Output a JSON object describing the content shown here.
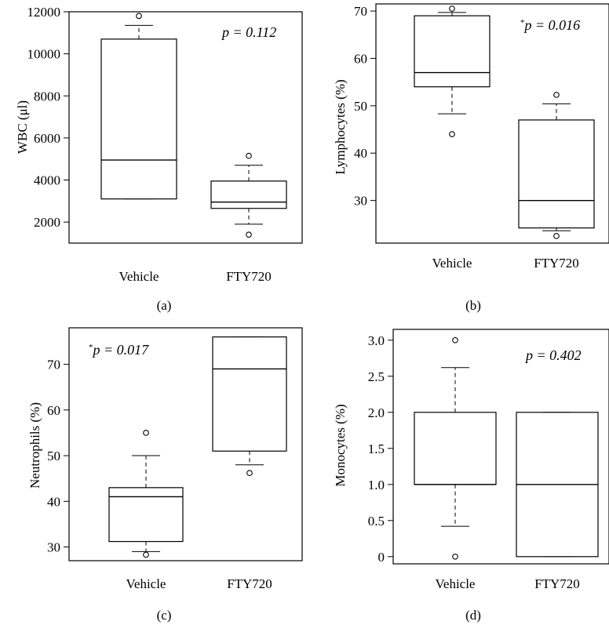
{
  "chart_data": [
    {
      "type": "box",
      "panel_label": "(a)",
      "ylabel": "WBC (μl)",
      "annotation": {
        "prefix": "",
        "text": "p = 0.112"
      },
      "ylim": [
        1000,
        12000
      ],
      "yticks": [
        2000,
        4000,
        6000,
        8000,
        10000,
        12000
      ],
      "yticklabels": [
        "2000",
        "4000",
        "6000",
        "8000",
        "10000",
        "12000"
      ],
      "categories": [
        "Vehicle",
        "FTY720"
      ],
      "boxes": [
        {
          "name": "Vehicle",
          "whisker_low": 3100,
          "q1": 3100,
          "median": 4950,
          "q3": 10700,
          "whisker_high": 11350,
          "outliers": [
            11800
          ]
        },
        {
          "name": "FTY720",
          "whisker_low": 1900,
          "q1": 2650,
          "median": 2950,
          "q3": 3950,
          "whisker_high": 4700,
          "outliers": [
            5150,
            1400
          ]
        }
      ]
    },
    {
      "type": "box",
      "panel_label": "(b)",
      "ylabel": "Lymphocytes (%)",
      "annotation": {
        "prefix": "*",
        "text": "p = 0.016"
      },
      "ylim": [
        21,
        71.5
      ],
      "yticks": [
        30,
        40,
        50,
        60,
        70
      ],
      "yticklabels": [
        "30",
        "40",
        "50",
        "60",
        "70"
      ],
      "categories": [
        "Vehicle",
        "FTY720"
      ],
      "boxes": [
        {
          "name": "Vehicle",
          "whisker_low": 48.3,
          "q1": 54,
          "median": 57,
          "q3": 69,
          "whisker_high": 69.7,
          "outliers": [
            44,
            70.5
          ]
        },
        {
          "name": "FTY720",
          "whisker_low": 23.6,
          "q1": 24.2,
          "median": 30,
          "q3": 47,
          "whisker_high": 50.4,
          "outliers": [
            52.3,
            22.5
          ]
        }
      ]
    },
    {
      "type": "box",
      "panel_label": "(c)",
      "ylabel": "Neutrophils (%)",
      "annotation": {
        "prefix": "*",
        "text": "p = 0.017"
      },
      "ylim": [
        27,
        78
      ],
      "yticks": [
        30,
        40,
        50,
        60,
        70
      ],
      "yticklabels": [
        "30",
        "40",
        "50",
        "60",
        "70"
      ],
      "categories": [
        "Vehicle",
        "FTY720"
      ],
      "boxes": [
        {
          "name": "Vehicle",
          "whisker_low": 29,
          "q1": 31.2,
          "median": 41,
          "q3": 43,
          "whisker_high": 50,
          "outliers": [
            55,
            28.3
          ]
        },
        {
          "name": "FTY720",
          "whisker_low": 48,
          "q1": 51,
          "median": 69,
          "q3": 76,
          "whisker_high": 76,
          "outliers": [
            46.2
          ]
        }
      ]
    },
    {
      "type": "box",
      "panel_label": "(d)",
      "ylabel": "Monocytes (%)",
      "annotation": {
        "prefix": "",
        "text": "p = 0.402"
      },
      "ylim": [
        -0.1,
        3.15
      ],
      "yticks": [
        0,
        0.5,
        1.0,
        1.5,
        2.0,
        2.5,
        3.0
      ],
      "yticklabels": [
        "0",
        "0.5",
        "1.0",
        "1.5",
        "2.0",
        "2.5",
        "3.0"
      ],
      "categories": [
        "Vehicle",
        "FTY720"
      ],
      "boxes": [
        {
          "name": "Vehicle",
          "whisker_low": 0.42,
          "q1": 1.0,
          "median": 1.0,
          "q3": 2.0,
          "whisker_high": 2.62,
          "outliers": [
            3.0,
            0.0
          ]
        },
        {
          "name": "FTY720",
          "whisker_low": 0,
          "q1": 0,
          "median": 1.0,
          "q3": 2.0,
          "whisker_high": 2.0,
          "outliers": []
        }
      ]
    }
  ]
}
